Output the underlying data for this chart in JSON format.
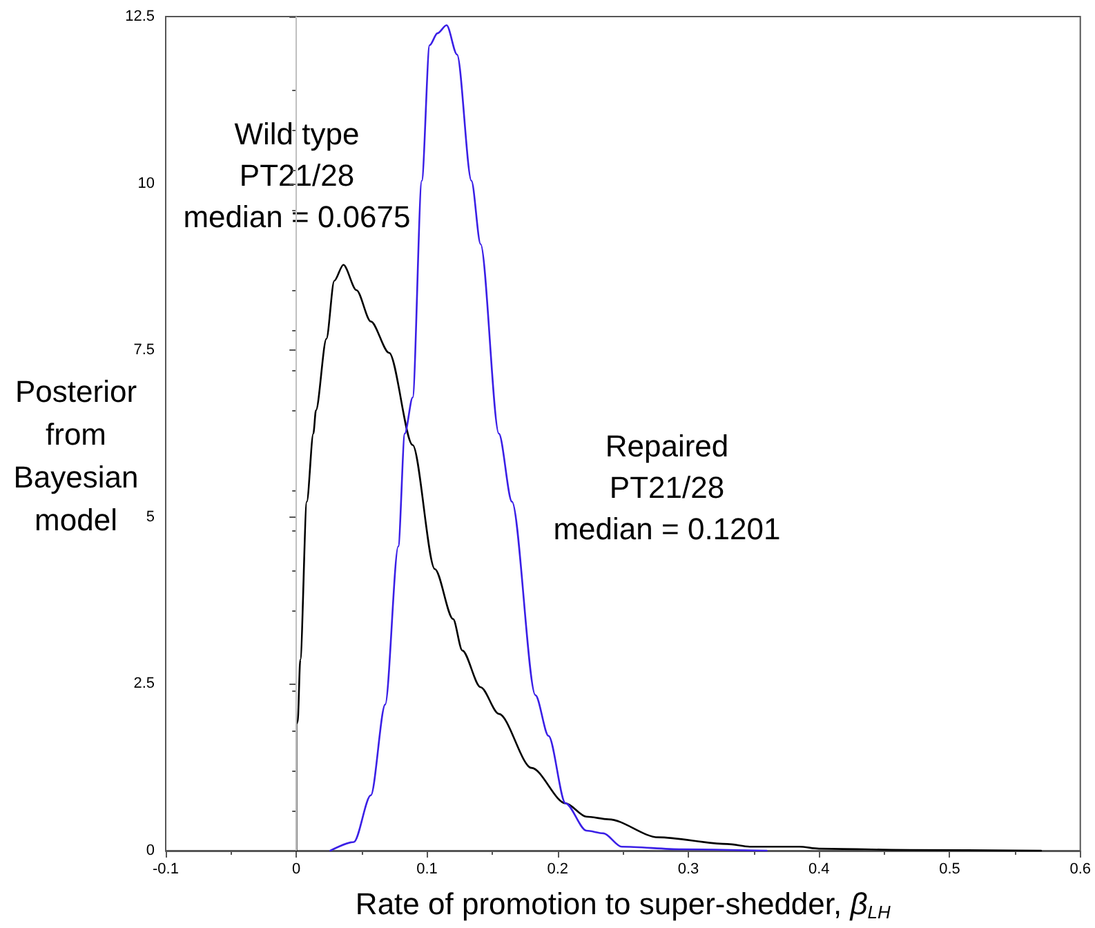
{
  "chart_data": {
    "type": "line",
    "xlabel": "Rate of promotion to super-shedder, β$_{LH}$",
    "ylabel": "Posterior\nfrom\nBayesian\nmodel",
    "annotations": [
      "Wild type\nPT21/28\nmedian = 0.0675",
      "Repaired\nPT21/28\nmedian = 0.1201"
    ],
    "xlim": [
      -0.1,
      0.6
    ],
    "xticks": [
      -0.1,
      0,
      0.1,
      0.2,
      0.3,
      0.4,
      0.5,
      0.6
    ],
    "ylim": [
      0,
      12.5
    ],
    "yticks": [
      0,
      2.5,
      5,
      7.5,
      10,
      12.5
    ],
    "grid": false,
    "marker": "none",
    "line_style": "solid",
    "ref_lines": [
      {
        "axis": "x",
        "value": 0,
        "color": "#c0c0c0"
      }
    ],
    "series": [
      {
        "color": "#000000",
        "x": [
          0,
          0,
          0.001,
          0.003,
          0.008,
          0.013,
          0.015,
          0.023,
          0.029,
          0.036,
          0.046,
          0.057,
          0.071,
          0.089,
          0.106,
          0.12,
          0.127,
          0.141,
          0.155,
          0.18,
          0.206,
          0.222,
          0.239,
          0.277,
          0.33,
          0.347,
          0.385,
          0.4,
          0.47,
          0.57
        ],
        "values": [
          0,
          1.9,
          1.93,
          2.86,
          5.23,
          6.25,
          6.6,
          7.67,
          8.54,
          8.78,
          8.4,
          7.93,
          7.46,
          6.08,
          4.22,
          3.47,
          3.0,
          2.45,
          2.05,
          1.24,
          0.71,
          0.51,
          0.47,
          0.2,
          0.1,
          0.06,
          0.06,
          0.03,
          0.01,
          0
        ]
      },
      {
        "color": "#3a1fe6",
        "x": [
          0.026,
          0.044,
          0.057,
          0.068,
          0.078,
          0.083,
          0.089,
          0.096,
          0.102,
          0.108,
          0.115,
          0.123,
          0.134,
          0.141,
          0.155,
          0.165,
          0.183,
          0.193,
          0.206,
          0.222,
          0.235,
          0.249,
          0.295,
          0.36
        ],
        "values": [
          0,
          0.13,
          0.83,
          2.19,
          4.56,
          6.25,
          6.79,
          10.04,
          12.07,
          12.25,
          12.37,
          11.93,
          10.04,
          9.09,
          6.25,
          5.23,
          2.33,
          1.72,
          0.71,
          0.3,
          0.26,
          0.06,
          0.02,
          0
        ]
      }
    ]
  }
}
